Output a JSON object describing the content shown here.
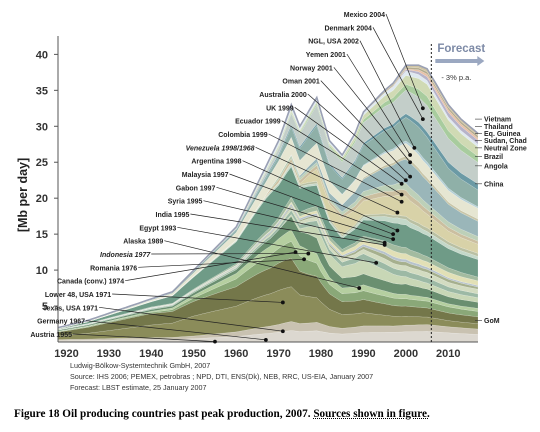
{
  "chart_data": {
    "type": "area",
    "ylabel": "[Mb per day]",
    "xlim": [
      1918,
      2017
    ],
    "ylim": [
      0,
      42
    ],
    "x_ticks": [
      1920,
      1930,
      1940,
      1950,
      1960,
      1970,
      1980,
      1990,
      2000,
      2010
    ],
    "y_ticks": [
      5,
      10,
      15,
      20,
      25,
      30,
      35,
      40
    ],
    "grid": false,
    "forecast": {
      "label": "Forecast",
      "start": 2006,
      "rate_label": "- 3% p.a."
    },
    "total_production": {
      "x": [
        1918,
        1925,
        1930,
        1935,
        1940,
        1945,
        1950,
        1955,
        1960,
        1965,
        1970,
        1973,
        1975,
        1979,
        1982,
        1985,
        1988,
        1990,
        1995,
        1997,
        2000,
        2003,
        2005,
        2007,
        2010,
        2013,
        2015,
        2017
      ],
      "y": [
        2,
        3,
        4,
        5,
        6,
        7,
        10,
        13,
        16,
        22,
        28,
        33,
        30,
        34,
        28,
        26,
        29,
        32,
        35,
        36,
        38.5,
        38.5,
        38,
        36,
        33,
        31,
        30,
        29
      ]
    },
    "layers": [
      {
        "name": "Austria 1955",
        "color": "#dcd8d0",
        "peak_year": 1955,
        "peak_value": 0.05,
        "x": [
          1918,
          1950,
          1960,
          1970,
          1980,
          1990,
          2000,
          2005,
          2010,
          2017
        ],
        "y": [
          0.3,
          0.5,
          0.7,
          1.0,
          1.2,
          1.3,
          1.4,
          1.4,
          1.2,
          1.0
        ]
      },
      {
        "name": "Germany 1967",
        "color": "#c9c2b1",
        "peak_year": 1967,
        "peak_value": 0.3,
        "x": [
          1918,
          1950,
          1960,
          1970,
          1980,
          1990,
          2000,
          2005,
          2010,
          2017
        ],
        "y": [
          0.2,
          0.4,
          0.6,
          0.8,
          0.9,
          0.9,
          0.9,
          0.9,
          0.8,
          0.7
        ]
      },
      {
        "name": "Texas, USA 1971",
        "color": "#8b8c5a",
        "peak_year": 1971,
        "peak_value": 1.5,
        "x": [
          1918,
          1930,
          1940,
          1950,
          1960,
          1970,
          1975,
          1980,
          1990,
          2000,
          2005,
          2010,
          2017
        ],
        "y": [
          0.7,
          1.5,
          2.2,
          3.0,
          3.3,
          3.5,
          3.0,
          2.5,
          1.8,
          1.2,
          1.0,
          0.8,
          0.7
        ]
      },
      {
        "name": "Lower 48, USA 1971",
        "color": "#74774a",
        "peak_year": 1971,
        "peak_value": 5.5,
        "x": [
          1918,
          1930,
          1940,
          1950,
          1960,
          1970,
          1975,
          1980,
          1990,
          2000,
          2005,
          2010,
          2017
        ],
        "y": [
          0.8,
          1.5,
          2.0,
          2.2,
          2.5,
          2.8,
          2.5,
          2.2,
          1.8,
          1.4,
          1.2,
          1.0,
          0.9
        ]
      },
      {
        "name": "Canada (conv.) 1974",
        "color": "#8aa878",
        "peak_year": 1974,
        "peak_value": 12.5,
        "x": [
          1918,
          1940,
          1950,
          1960,
          1970,
          1975,
          1980,
          1990,
          2000,
          2005,
          2010,
          2017
        ],
        "y": [
          0.1,
          0.2,
          0.5,
          1.0,
          1.5,
          1.6,
          1.3,
          1.2,
          1.0,
          0.9,
          0.8,
          0.7
        ]
      },
      {
        "name": "Romania 1976",
        "color": "#b5cfa0",
        "peak_year": 1976,
        "peak_value": 11.5,
        "x": [
          1918,
          1940,
          1950,
          1960,
          1970,
          1976,
          1980,
          1990,
          2000,
          2005,
          2010,
          2017
        ],
        "y": [
          0.1,
          0.2,
          0.4,
          0.7,
          1.0,
          1.1,
          1.0,
          0.8,
          0.6,
          0.5,
          0.4,
          0.4
        ]
      },
      {
        "name": "Indonesia 1977",
        "color": "#6a8f70",
        "peak_year": 1977,
        "peak_value": 12.3,
        "x": [
          1918,
          1940,
          1950,
          1960,
          1970,
          1977,
          1980,
          1990,
          2000,
          2005,
          2010,
          2017
        ],
        "y": [
          0.2,
          0.3,
          0.4,
          0.5,
          0.9,
          1.7,
          1.6,
          1.5,
          1.4,
          1.1,
          0.9,
          0.8
        ]
      },
      {
        "name": "Alaska 1989",
        "color": "#c8d7b6",
        "peak_year": 1989,
        "peak_value": 7.5,
        "x": [
          1918,
          1970,
          1975,
          1980,
          1989,
          1995,
          2000,
          2005,
          2010,
          2017
        ],
        "y": [
          0,
          0,
          0.3,
          1.5,
          2.0,
          1.5,
          1.0,
          0.8,
          0.7,
          0.6
        ]
      },
      {
        "name": "Egypt 1993",
        "color": "#9cb9a5",
        "peak_year": 1993,
        "peak_value": 11,
        "x": [
          1918,
          1960,
          1970,
          1980,
          1993,
          2000,
          2005,
          2010,
          2017
        ],
        "y": [
          0.1,
          0.2,
          0.3,
          0.6,
          0.9,
          0.8,
          0.7,
          0.6,
          0.5
        ]
      },
      {
        "name": "India 1995",
        "color": "#d3dcc1",
        "peak_year": 1995,
        "peak_value": 13.5,
        "x": [
          1918,
          1960,
          1970,
          1980,
          1995,
          2000,
          2005,
          2010,
          2017
        ],
        "y": [
          0,
          0.1,
          0.2,
          0.4,
          0.7,
          0.7,
          0.7,
          0.6,
          0.6
        ]
      },
      {
        "name": "Syria 1995",
        "color": "#a6b08e",
        "peak_year": 1995,
        "peak_value": 13.8,
        "x": [
          1918,
          1970,
          1980,
          1990,
          1995,
          2000,
          2005,
          2010,
          2017
        ],
        "y": [
          0,
          0.1,
          0.2,
          0.4,
          0.6,
          0.5,
          0.4,
          0.4,
          0.3
        ]
      },
      {
        "name": "Gabon 1997",
        "color": "#b7c3cc",
        "peak_year": 1997,
        "peak_value": 14.3,
        "x": [
          1918,
          1960,
          1970,
          1980,
          1990,
          1997,
          2005,
          2010,
          2017
        ],
        "y": [
          0,
          0.1,
          0.2,
          0.2,
          0.3,
          0.4,
          0.3,
          0.2,
          0.2
        ]
      },
      {
        "name": "Malaysia 1997",
        "color": "#e2e0b6",
        "peak_year": 1997,
        "peak_value": 15,
        "x": [
          1918,
          1970,
          1980,
          1990,
          1997,
          2005,
          2010,
          2017
        ],
        "y": [
          0,
          0.1,
          0.3,
          0.6,
          0.8,
          0.7,
          0.7,
          0.6
        ]
      },
      {
        "name": "Argentina 1998",
        "color": "#a3bba0",
        "peak_year": 1998,
        "peak_value": 15.5,
        "x": [
          1918,
          1950,
          1960,
          1970,
          1980,
          1990,
          1998,
          2005,
          2010,
          2017
        ],
        "y": [
          0.1,
          0.1,
          0.2,
          0.4,
          0.5,
          0.5,
          0.9,
          0.7,
          0.6,
          0.5
        ]
      },
      {
        "name": "Venezuela 1998/1968",
        "color": "#6f9b87",
        "peak_year": 1998,
        "peak_value": 18,
        "x": [
          1918,
          1930,
          1940,
          1950,
          1960,
          1968,
          1975,
          1985,
          1990,
          1998,
          2005,
          2010,
          2017
        ],
        "y": [
          0.1,
          0.5,
          0.9,
          1.8,
          2.8,
          3.6,
          2.5,
          1.7,
          2.2,
          3.2,
          2.8,
          2.5,
          2.3
        ]
      },
      {
        "name": "Colombia 1999",
        "color": "#c4d8c9",
        "peak_year": 1999,
        "peak_value": 19.5,
        "x": [
          1918,
          1950,
          1970,
          1980,
          1990,
          1999,
          2005,
          2010,
          2017
        ],
        "y": [
          0,
          0.1,
          0.2,
          0.2,
          0.4,
          0.8,
          0.5,
          0.5,
          0.4
        ]
      },
      {
        "name": "Ecuador 1999",
        "color": "#b9c0a3",
        "peak_year": 1999,
        "peak_value": 20.5,
        "x": [
          1918,
          1970,
          1975,
          1990,
          1999,
          2005,
          2010,
          2017
        ],
        "y": [
          0,
          0,
          0.2,
          0.3,
          0.4,
          0.5,
          0.4,
          0.4
        ]
      },
      {
        "name": "UK 1999",
        "color": "#d8d2a8",
        "peak_year": 1999,
        "peak_value": 22,
        "x": [
          1918,
          1975,
          1980,
          1985,
          1990,
          1999,
          2005,
          2010,
          2017
        ],
        "y": [
          0,
          0.1,
          1.6,
          2.6,
          1.9,
          2.9,
          1.8,
          1.4,
          1.2
        ]
      },
      {
        "name": "Australia 2000",
        "color": "#cbbfa0",
        "peak_year": 2000,
        "peak_value": 22.5,
        "x": [
          1918,
          1965,
          1970,
          1980,
          1990,
          2000,
          2005,
          2010,
          2017
        ],
        "y": [
          0,
          0,
          0.3,
          0.4,
          0.6,
          0.8,
          0.6,
          0.5,
          0.4
        ]
      },
      {
        "name": "Oman 2001",
        "color": "#bdd0b8",
        "peak_year": 2001,
        "peak_value": 23,
        "x": [
          1918,
          1967,
          1970,
          1980,
          1990,
          2001,
          2005,
          2010,
          2017
        ],
        "y": [
          0,
          0,
          0.3,
          0.3,
          0.7,
          1.0,
          0.8,
          0.7,
          0.6
        ]
      },
      {
        "name": "Norway 2001",
        "color": "#9ab6b9",
        "peak_year": 2001,
        "peak_value": 25,
        "x": [
          1918,
          1972,
          1980,
          1990,
          2001,
          2005,
          2010,
          2017
        ],
        "y": [
          0,
          0,
          0.5,
          1.7,
          3.4,
          3.0,
          2.3,
          2.0
        ]
      },
      {
        "name": "Yemen 2001",
        "color": "#c9c6a8",
        "peak_year": 2001,
        "peak_value": 26,
        "x": [
          1918,
          1986,
          1990,
          2001,
          2005,
          2010,
          2017
        ],
        "y": [
          0,
          0,
          0.2,
          0.45,
          0.4,
          0.3,
          0.3
        ]
      },
      {
        "name": "NGL, USA 2002",
        "color": "#e6e6d2",
        "peak_year": 2002,
        "peak_value": 27,
        "x": [
          1918,
          1940,
          1950,
          1960,
          1970,
          1980,
          1990,
          2002,
          2005,
          2010,
          2017
        ],
        "y": [
          0.1,
          0.2,
          0.5,
          1.0,
          1.6,
          1.6,
          1.6,
          1.8,
          1.7,
          1.5,
          1.4
        ]
      },
      {
        "name": "Denmark 2004",
        "color": "#b4cfd6",
        "peak_year": 2004,
        "peak_value": 31,
        "x": [
          1918,
          1980,
          1990,
          2004,
          2010,
          2017
        ],
        "y": [
          0,
          0,
          0.1,
          0.4,
          0.3,
          0.2
        ]
      },
      {
        "name": "Mexico 2004",
        "color": "#8fb0a8",
        "peak_year": 2004,
        "peak_value": 32.5,
        "x": [
          1918,
          1940,
          1960,
          1970,
          1980,
          1990,
          2004,
          2010,
          2017
        ],
        "y": [
          0.1,
          0.1,
          0.3,
          0.5,
          2.0,
          2.7,
          3.4,
          2.6,
          2.2
        ]
      },
      {
        "name": "GoM",
        "color": "#6b9aa5",
        "peak_year": null,
        "peak_value": null,
        "x": [
          1918,
          1945,
          1960,
          1970,
          1980,
          1990,
          2000,
          2005,
          2010,
          2017
        ],
        "y": [
          0,
          0,
          0.1,
          0.2,
          0.2,
          0.3,
          0.5,
          0.7,
          0.8,
          0.8
        ]
      },
      {
        "name": "China",
        "color": "#c3cec9",
        "peak_year": null,
        "peak_value": null,
        "x": [
          1918,
          1960,
          1970,
          1980,
          1990,
          2000,
          2005,
          2010,
          2017
        ],
        "y": [
          0,
          0.1,
          0.6,
          2.1,
          2.8,
          3.2,
          3.5,
          3.1,
          2.8
        ]
      },
      {
        "name": "Angola",
        "color": "#a8cc9e",
        "peak_year": null,
        "peak_value": null,
        "x": [
          1918,
          1960,
          1970,
          1980,
          1990,
          2000,
          2005,
          2010,
          2017
        ],
        "y": [
          0,
          0,
          0.1,
          0.2,
          0.4,
          0.8,
          1.2,
          1.0,
          0.8
        ]
      },
      {
        "name": "Brazil",
        "color": "#d0dab4",
        "peak_year": null,
        "peak_value": null,
        "x": [
          1918,
          1960,
          1970,
          1980,
          1990,
          2000,
          2005,
          2010,
          2017
        ],
        "y": [
          0,
          0.1,
          0.2,
          0.2,
          0.6,
          1.2,
          1.6,
          1.4,
          1.2
        ]
      },
      {
        "name": "Neutral Zone",
        "color": "#dfe9f0",
        "peak_year": null,
        "peak_value": null,
        "x": [
          1918,
          1950,
          1960,
          1970,
          1980,
          1990,
          2000,
          2005,
          2010,
          2017
        ],
        "y": [
          0,
          0,
          0.1,
          0.5,
          0.4,
          0.3,
          0.6,
          0.5,
          0.4,
          0.4
        ]
      },
      {
        "name": "Sudan, Chad",
        "color": "#b7b3c9",
        "peak_year": null,
        "peak_value": null,
        "x": [
          1918,
          1995,
          2000,
          2005,
          2010,
          2017
        ],
        "y": [
          0,
          0,
          0.2,
          0.5,
          0.6,
          0.5
        ]
      },
      {
        "name": "Eq. Guinea",
        "color": "#e9c0a6",
        "peak_year": null,
        "peak_value": null,
        "x": [
          1918,
          1995,
          2000,
          2005,
          2010,
          2017
        ],
        "y": [
          0,
          0,
          0.1,
          0.35,
          0.35,
          0.3
        ]
      },
      {
        "name": "Thailand",
        "color": "#b3ab8d",
        "peak_year": null,
        "peak_value": null,
        "x": [
          1918,
          1980,
          1990,
          2000,
          2005,
          2010,
          2017
        ],
        "y": [
          0,
          0,
          0.1,
          0.2,
          0.3,
          0.3,
          0.3
        ]
      },
      {
        "name": "Vietnam",
        "color": "#cfc4a3",
        "peak_year": null,
        "peak_value": null,
        "x": [
          1918,
          1985,
          1990,
          2000,
          2005,
          2010,
          2017
        ],
        "y": [
          0,
          0,
          0.05,
          0.3,
          0.4,
          0.35,
          0.3
        ]
      }
    ],
    "right_labels": [
      {
        "name": "Vietnam",
        "y": 31
      },
      {
        "name": "Thailand",
        "y": 30
      },
      {
        "name": "Eq. Guinea",
        "y": 29
      },
      {
        "name": "Sudan, Chad",
        "y": 28
      },
      {
        "name": "Neutral Zone",
        "y": 27
      },
      {
        "name": "Brazil",
        "y": 25.8
      },
      {
        "name": "Angola",
        "y": 24.5
      },
      {
        "name": "China",
        "y": 22
      },
      {
        "name": "GoM",
        "y": 3
      }
    ]
  },
  "source": {
    "line1": "Ludwig-Bölkow-Systemtechnik GmbH, 2007",
    "line2": "Source: IHS 2006; PEMEX, petrobras ;  NPD, DTI, ENS(Dk), NEB, RRC, US-EIA, January 2007",
    "line3": "Forecast: LBST estimate, 25 January 2007"
  },
  "caption": {
    "main": "Figure 18 Oil producing countries past peak production, 2007.  ",
    "sources": "Sources shown in figure."
  }
}
